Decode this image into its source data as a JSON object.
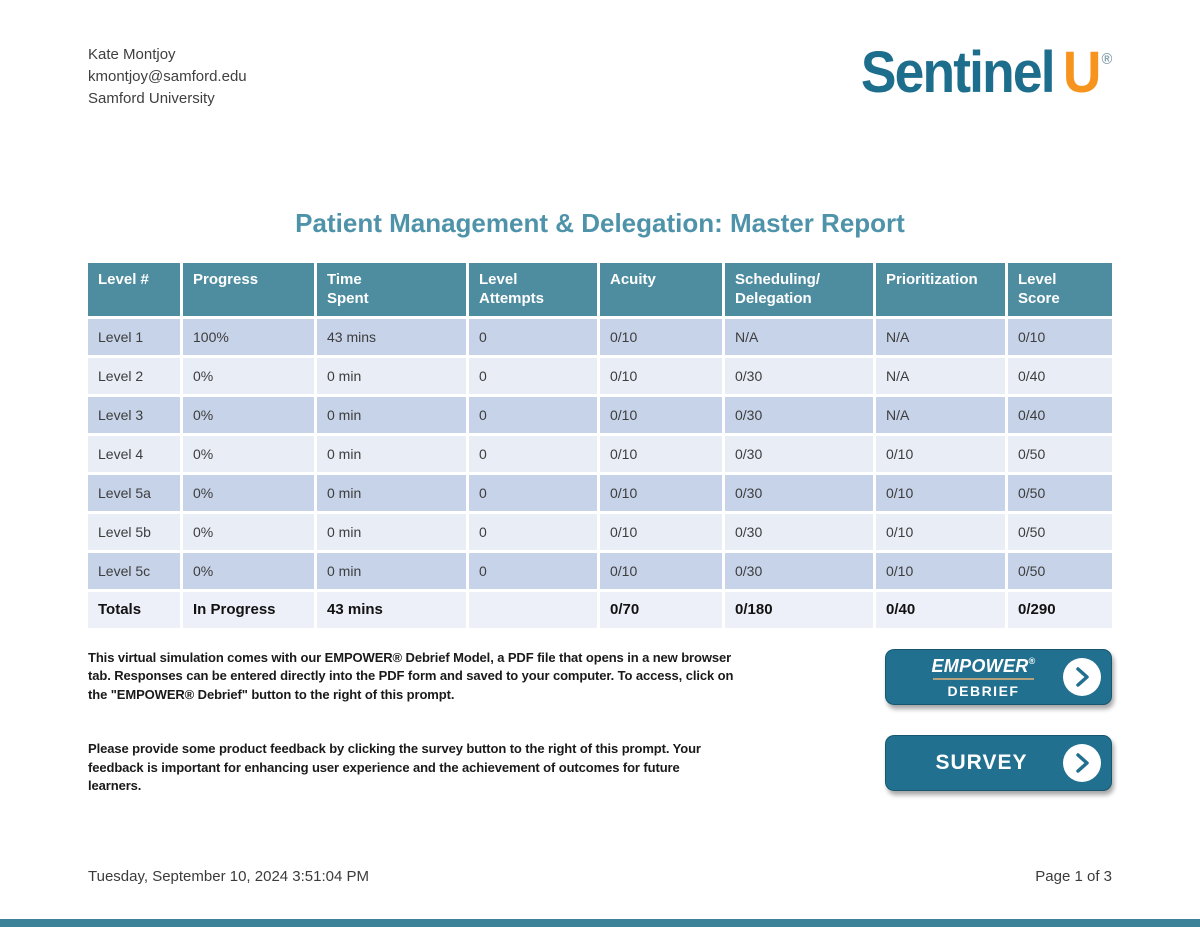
{
  "user": {
    "name": "Kate Montjoy",
    "email": "kmontjoy@samford.edu",
    "institution": "Samford University"
  },
  "logo": {
    "brand": "Sentinel",
    "u": "U",
    "registered": "®"
  },
  "report": {
    "title": "Patient Management & Delegation: Master Report"
  },
  "table": {
    "headers": [
      "Level #",
      "Progress",
      "Time\nSpent",
      "Level\nAttempts",
      "Acuity",
      "Scheduling/\nDelegation",
      "Prioritization",
      "Level\nScore"
    ],
    "rows": [
      [
        "Level 1",
        "100%",
        "43 mins",
        "0",
        "0/10",
        "N/A",
        "N/A",
        "0/10"
      ],
      [
        "Level 2",
        "0%",
        "0 min",
        "0",
        "0/10",
        "0/30",
        "N/A",
        "0/40"
      ],
      [
        "Level 3",
        "0%",
        "0 min",
        "0",
        "0/10",
        "0/30",
        "N/A",
        "0/40"
      ],
      [
        "Level 4",
        "0%",
        "0 min",
        "0",
        "0/10",
        "0/30",
        "0/10",
        "0/50"
      ],
      [
        "Level 5a",
        "0%",
        "0 min",
        "0",
        "0/10",
        "0/30",
        "0/10",
        "0/50"
      ],
      [
        "Level 5b",
        "0%",
        "0 min",
        "0",
        "0/10",
        "0/30",
        "0/10",
        "0/50"
      ],
      [
        "Level 5c",
        "0%",
        "0 min",
        "0",
        "0/10",
        "0/30",
        "0/10",
        "0/50"
      ]
    ],
    "totals": [
      "Totals",
      "In Progress",
      "43 mins",
      "",
      "0/70",
      "0/180",
      "0/40",
      "0/290"
    ]
  },
  "notes": {
    "debrief": "This virtual simulation comes with our EMPOWER® Debrief Model, a PDF file that opens in a new browser tab. Responses can be entered directly into the PDF form and saved to your computer. To access, click on the \"EMPOWER® Debrief\" button to the right of this prompt.",
    "survey": "Please provide some product feedback by clicking the survey button to the right of this prompt. Your feedback is important for enhancing user experience and the achievement of outcomes for future learners."
  },
  "buttons": {
    "debrief": {
      "line1": "EMPOWER",
      "registered": "®",
      "line2": "DEBRIEF"
    },
    "survey": {
      "label": "SURVEY"
    }
  },
  "footer": {
    "timestamp": "Tuesday, September 10, 2024 3:51:04 PM",
    "page": "Page 1 of 3"
  },
  "colors": {
    "brand_teal": "#1d6d8d",
    "brand_orange": "#f7941e",
    "title_teal": "#4e93a9",
    "table_header_teal": "#4e8da0",
    "row_dark": "#c6d3e8",
    "row_light": "#e9edf6",
    "totals_row": "#edf0f8",
    "button_teal": "#21708f",
    "bottom_bar": "#3c8299"
  }
}
